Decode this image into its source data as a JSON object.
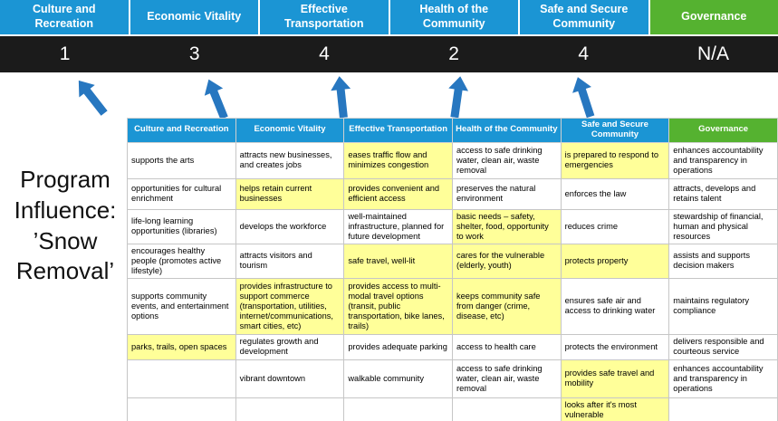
{
  "colors": {
    "blue": "#1b95d4",
    "green": "#55b230",
    "scorebg": "#1b1b1b",
    "highlight": "#ffff99",
    "arrow": "#2777c0"
  },
  "banner": {
    "columns": [
      {
        "label": "Culture and Recreation",
        "score": "1"
      },
      {
        "label": "Economic Vitality",
        "score": "3"
      },
      {
        "label": "Effective Transportation",
        "score": "4"
      },
      {
        "label": "Health of the Community",
        "score": "2"
      },
      {
        "label": "Safe and Secure Community",
        "score": "4"
      },
      {
        "label": "Governance",
        "score": "N/A"
      }
    ]
  },
  "program_label": "Program Influence: ’Snow Removal’",
  "table": {
    "headers": [
      "Culture and Recreation",
      "Economic Vitality",
      "Effective Transportation",
      "Health of the Community",
      "Safe and Secure Community",
      "Governance"
    ],
    "rows": [
      [
        {
          "t": "supports the arts",
          "h": false
        },
        {
          "t": "attracts new businesses, and creates jobs",
          "h": false
        },
        {
          "t": "eases traffic flow and minimizes congestion",
          "h": true
        },
        {
          "t": "access to safe drinking water, clean air, waste removal",
          "h": false
        },
        {
          "t": "is prepared to respond to emergencies",
          "h": true
        },
        {
          "t": "enhances accountability and transparency in operations",
          "h": false
        }
      ],
      [
        {
          "t": "opportunities for cultural enrichment",
          "h": false
        },
        {
          "t": "helps retain current businesses",
          "h": true
        },
        {
          "t": "provides convenient and efficient access",
          "h": true
        },
        {
          "t": "preserves the natural environment",
          "h": false
        },
        {
          "t": "enforces the law",
          "h": false
        },
        {
          "t": "attracts, develops and retains talent",
          "h": false
        }
      ],
      [
        {
          "t": "life-long learning opportunities (libraries)",
          "h": false
        },
        {
          "t": "develops the workforce",
          "h": false
        },
        {
          "t": "well-maintained infrastructure, planned for future development",
          "h": false
        },
        {
          "t": "basic needs – safety, shelter, food, opportunity to work",
          "h": true
        },
        {
          "t": "reduces crime",
          "h": false
        },
        {
          "t": "stewardship of financial, human and physical resources",
          "h": false
        }
      ],
      [
        {
          "t": "encourages healthy people (promotes active lifestyle)",
          "h": false
        },
        {
          "t": "attracts visitors and tourism",
          "h": false
        },
        {
          "t": "safe travel, well-lit",
          "h": true
        },
        {
          "t": "cares for the vulnerable (elderly, youth)",
          "h": true
        },
        {
          "t": "protects property",
          "h": true
        },
        {
          "t": "assists and supports decision makers",
          "h": false
        }
      ],
      [
        {
          "t": "supports community events, and entertainment options",
          "h": false
        },
        {
          "t": "provides infrastructure to support commerce (transportation, utilities, internet/communications, smart cities, etc)",
          "h": true
        },
        {
          "t": "provides access to multi-modal travel options (transit, public transportation, bike lanes, trails)",
          "h": true
        },
        {
          "t": "keeps community safe from danger (crime, disease, etc)",
          "h": true
        },
        {
          "t": "ensures safe air and access to drinking water",
          "h": false
        },
        {
          "t": "maintains regulatory compliance",
          "h": false
        }
      ],
      [
        {
          "t": "parks, trails, open spaces",
          "h": true
        },
        {
          "t": "regulates growth and development",
          "h": false
        },
        {
          "t": "provides adequate parking",
          "h": false
        },
        {
          "t": "access to health care",
          "h": false
        },
        {
          "t": "protects the environment",
          "h": false
        },
        {
          "t": "delivers responsible and courteous service",
          "h": false
        }
      ],
      [
        {
          "t": "",
          "h": false
        },
        {
          "t": "vibrant downtown",
          "h": false
        },
        {
          "t": "walkable community",
          "h": false
        },
        {
          "t": "access to safe drinking water, clean air, waste removal",
          "h": false
        },
        {
          "t": "provides safe travel and mobility",
          "h": true
        },
        {
          "t": "enhances accountability and transparency in operations",
          "h": false
        }
      ],
      [
        {
          "t": "",
          "h": false
        },
        {
          "t": "",
          "h": false
        },
        {
          "t": "",
          "h": false
        },
        {
          "t": "",
          "h": false
        },
        {
          "t": "looks after it's most vulnerable",
          "h": true
        },
        {
          "t": "",
          "h": false
        }
      ]
    ]
  }
}
